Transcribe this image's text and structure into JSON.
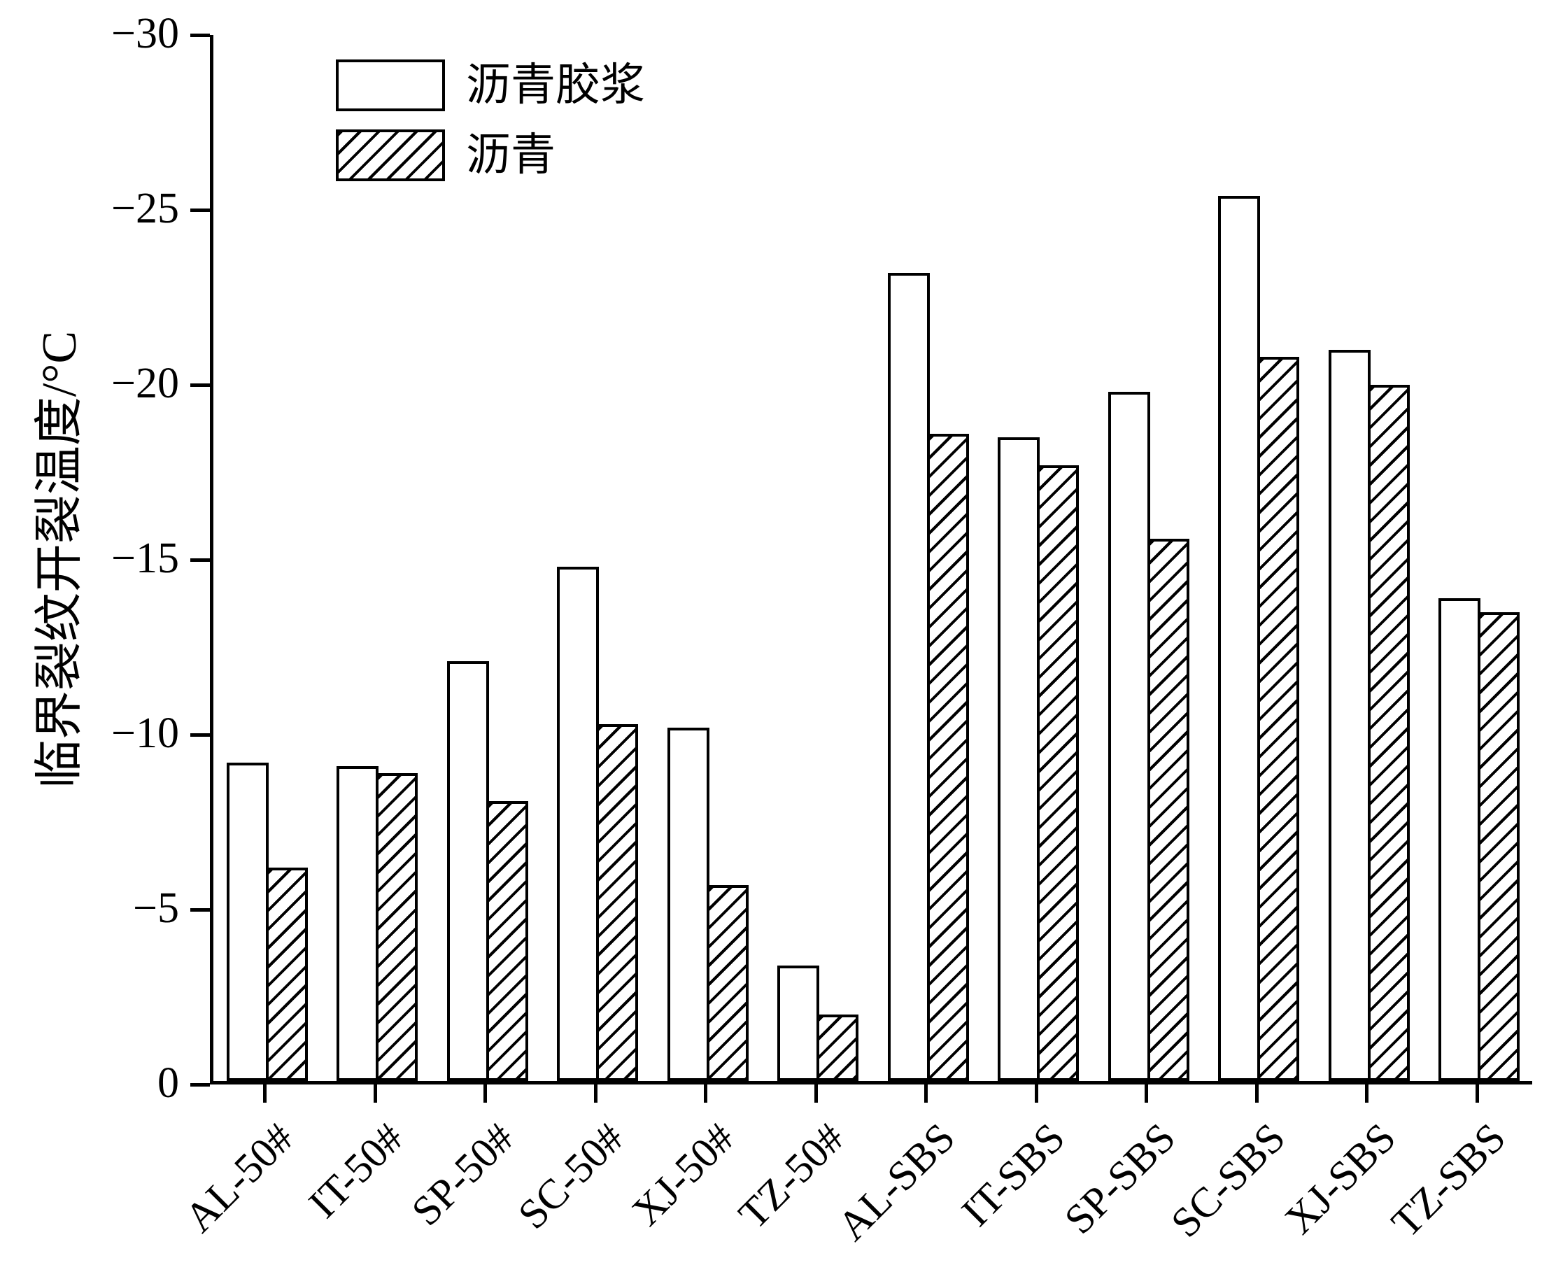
{
  "chart_data": {
    "type": "bar",
    "title": "",
    "ylabel": "临界裂纹开裂温度/°C",
    "xlabel": "",
    "categories": [
      "AL-50#",
      "IT-50#",
      "SP-50#",
      "SC-50#",
      "XJ-50#",
      "TZ-50#",
      "AL-SBS",
      "IT-SBS",
      "SP-SBS",
      "SC-SBS",
      "XJ-SBS",
      "TZ-SBS"
    ],
    "series": [
      {
        "name": "沥青胶浆",
        "style": "plain",
        "values": [
          -9.1,
          -9.0,
          -12.0,
          -14.7,
          -10.1,
          -3.3,
          -23.1,
          -18.4,
          -19.7,
          -25.3,
          -20.9,
          -13.8
        ]
      },
      {
        "name": "沥青",
        "style": "hatched",
        "values": [
          -6.1,
          -8.8,
          -8.0,
          -10.2,
          -5.6,
          -1.9,
          -18.5,
          -17.6,
          -15.5,
          -20.7,
          -19.9,
          -13.4
        ]
      }
    ],
    "ylim": [
      0,
      -30
    ],
    "yticks": [
      0,
      -5,
      -10,
      -15,
      -20,
      -25,
      -30
    ],
    "axis_inverted": true,
    "grid": false,
    "legend_position": "top-left",
    "colors": {
      "bar_fill": "#ffffff",
      "bar_stroke": "#000000",
      "background": "#ffffff"
    }
  }
}
